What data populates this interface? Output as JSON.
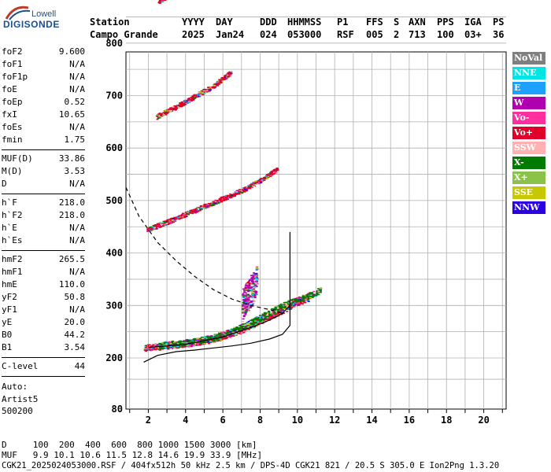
{
  "logo": {
    "top": "Lowell",
    "main": "DIGISONDE"
  },
  "header": {
    "labels": [
      "Station",
      "YYYY",
      "DAY",
      "DDD",
      "HHMMSS",
      "P1",
      "FFS",
      "S",
      "AXN",
      "PPS",
      "IGA",
      "PS"
    ],
    "values": [
      "Campo Grande",
      "2025",
      "Jan24",
      "024",
      "053000",
      "RSF",
      "005",
      "2",
      "713",
      "100",
      "03+",
      "36"
    ]
  },
  "params": [
    {
      "k": "foF2",
      "v": "9.600"
    },
    {
      "k": "foF1",
      "v": "N/A"
    },
    {
      "k": "foF1p",
      "v": "N/A"
    },
    {
      "k": "foE",
      "v": "N/A"
    },
    {
      "k": "foEp",
      "v": "0.52"
    },
    {
      "k": "fxI",
      "v": "10.65"
    },
    {
      "k": "foEs",
      "v": "N/A"
    },
    {
      "k": "fmin",
      "v": "1.75"
    },
    {
      "k": "MUF(D)",
      "v": "33.86"
    },
    {
      "k": "M(D)",
      "v": "3.53"
    },
    {
      "k": "D",
      "v": "N/A"
    },
    {
      "k": "h`F",
      "v": "218.0"
    },
    {
      "k": "h`F2",
      "v": "218.0"
    },
    {
      "k": "h`E",
      "v": "N/A"
    },
    {
      "k": "h`Es",
      "v": "N/A"
    },
    {
      "k": "hmF2",
      "v": "265.5"
    },
    {
      "k": "hmF1",
      "v": "N/A"
    },
    {
      "k": "hmE",
      "v": "110.0"
    },
    {
      "k": "yF2",
      "v": "50.8"
    },
    {
      "k": "yF1",
      "v": "N/A"
    },
    {
      "k": "yE",
      "v": "20.0"
    },
    {
      "k": "B0",
      "v": "44.2"
    },
    {
      "k": "B1",
      "v": "3.54"
    },
    {
      "k": "C-level",
      "v": "44"
    }
  ],
  "auto": {
    "line1": "Auto:",
    "line2": "Artist5",
    "line3": "500200"
  },
  "legend": [
    {
      "label": "NoVal",
      "color": "#7f7f7f"
    },
    {
      "label": "NNE",
      "color": "#00e5e5"
    },
    {
      "label": "E",
      "color": "#1ea0ff"
    },
    {
      "label": "W",
      "color": "#b000b0"
    },
    {
      "label": "Vo-",
      "color": "#ff2fa0"
    },
    {
      "label": "Vo+",
      "color": "#e0002a"
    },
    {
      "label": "SSW",
      "color": "#ffb0b0"
    },
    {
      "label": "X-",
      "color": "#007a00"
    },
    {
      "label": "X+",
      "color": "#8bc34a"
    },
    {
      "label": "SSE",
      "color": "#c8c800"
    },
    {
      "label": "NNW",
      "color": "#2a00e0"
    }
  ],
  "footer": {
    "d_line": "D     100  200  400  600  800 1000 1500 3000 [km]",
    "muf_line": "MUF   9.9 10.1 10.6 11.5 12.8 14.6 19.9 33.9 [MHz]",
    "file_line": "CGK21_2025024053000.RSF / 404fx512h 50 kHz 2.5 km / DPS-4D CGK21 821 / 20.5 S 305.0 E Ion2Png 1.3.20"
  },
  "chart_data": {
    "type": "scatter",
    "xlim": [
      0.8,
      21.2
    ],
    "ylim": [
      80,
      900
    ],
    "x_ticks": [
      2,
      4,
      6,
      8,
      10,
      12,
      14,
      16,
      18,
      20
    ],
    "y_ticks": [
      80,
      200,
      300,
      400,
      500,
      600,
      700,
      800,
      900
    ],
    "grid": true,
    "traces": [
      {
        "role": "o-trace",
        "color": "#e0002a",
        "points": [
          [
            1.75,
            220
          ],
          [
            2.5,
            222
          ],
          [
            3.5,
            226
          ],
          [
            4.5,
            230
          ],
          [
            5.5,
            237
          ],
          [
            6.5,
            248
          ],
          [
            7.5,
            262
          ],
          [
            8.2,
            275
          ],
          [
            8.8,
            285
          ],
          [
            9.4,
            295
          ],
          [
            9.8,
            305
          ],
          [
            10.2,
            310
          ],
          [
            10.6,
            315
          ]
        ]
      },
      {
        "role": "x-trace",
        "color": "#007a00",
        "points": [
          [
            2.5,
            225
          ],
          [
            3.5,
            228
          ],
          [
            4.5,
            232
          ],
          [
            5.5,
            240
          ],
          [
            6.5,
            252
          ],
          [
            7.5,
            268
          ],
          [
            8.5,
            288
          ],
          [
            9.5,
            305
          ],
          [
            10.5,
            318
          ],
          [
            11.2,
            330
          ]
        ]
      },
      {
        "role": "2-hop",
        "color": "#e0002a",
        "points": [
          [
            1.9,
            445
          ],
          [
            3,
            460
          ],
          [
            4,
            475
          ],
          [
            5,
            490
          ],
          [
            6,
            505
          ],
          [
            7,
            520
          ],
          [
            8,
            540
          ],
          [
            8.9,
            560
          ]
        ]
      },
      {
        "role": "3-hop",
        "color": "#e0002a",
        "points": [
          [
            2.4,
            660
          ],
          [
            3.5,
            680
          ],
          [
            4.5,
            700
          ],
          [
            5.5,
            720
          ],
          [
            6.4,
            745
          ]
        ]
      },
      {
        "role": "4-hop",
        "color": "#e0002a",
        "points": [
          [
            2.5,
            880
          ],
          [
            3.2,
            895
          ]
        ]
      },
      {
        "role": "spread-F",
        "color": "#b000b0",
        "points": [
          [
            7,
            300
          ],
          [
            7.5,
            330
          ],
          [
            8,
            360
          ],
          [
            8.5,
            380
          ],
          [
            9,
            400
          ],
          [
            8,
            430
          ],
          [
            8.7,
            450
          ],
          [
            7.8,
            480
          ]
        ]
      }
    ],
    "lines": [
      {
        "role": "true-height profile",
        "style": "solid",
        "points": [
          [
            1.75,
            190
          ],
          [
            2.5,
            205
          ],
          [
            3.5,
            212
          ],
          [
            4.5,
            215
          ],
          [
            5.5,
            219
          ],
          [
            6.5,
            223
          ],
          [
            7.5,
            228
          ],
          [
            8.5,
            236
          ],
          [
            9.2,
            245
          ],
          [
            9.6,
            262
          ],
          [
            9.6,
            440
          ]
        ]
      },
      {
        "role": "model trace",
        "style": "dashed",
        "points": [
          [
            0.8,
            525
          ],
          [
            1.5,
            470
          ],
          [
            2.5,
            420
          ],
          [
            3.5,
            385
          ],
          [
            4.5,
            355
          ],
          [
            5.5,
            330
          ],
          [
            6.5,
            312
          ],
          [
            7.5,
            300
          ],
          [
            8.5,
            292
          ],
          [
            9.2,
            285
          ]
        ]
      },
      {
        "role": "ionogram fit",
        "style": "solid",
        "points": [
          [
            2,
            220
          ],
          [
            4,
            226
          ],
          [
            6,
            240
          ],
          [
            7.5,
            258
          ],
          [
            8.5,
            272
          ],
          [
            9.2,
            285
          ],
          [
            9.6,
            300
          ]
        ]
      }
    ]
  }
}
